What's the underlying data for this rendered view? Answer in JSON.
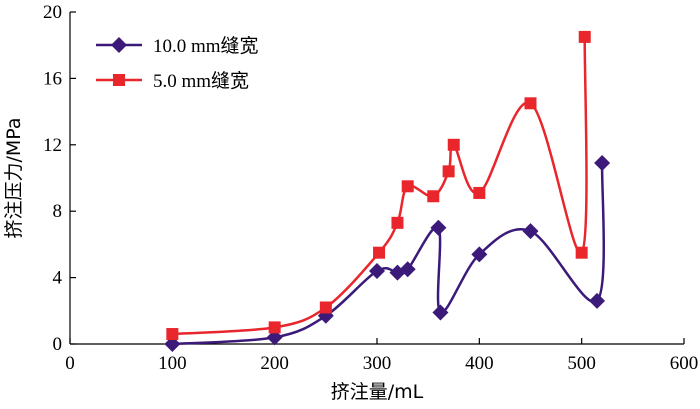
{
  "chart_data": {
    "type": "line",
    "xlabel": "挤注量/mL",
    "ylabel": "挤注压力/MPa",
    "xlim": [
      0,
      600
    ],
    "ylim": [
      0,
      20
    ],
    "x_ticks": [
      "0",
      "100",
      "200",
      "300",
      "400",
      "500",
      "600"
    ],
    "y_ticks": [
      "0",
      "4",
      "8",
      "12",
      "16",
      "20"
    ],
    "grid": false,
    "legend_position": "top-left",
    "series": [
      {
        "name": "10.0 mm缝宽",
        "color": "#3b1a7a",
        "marker": "diamond",
        "x": [
          100,
          200,
          250,
          300,
          320,
          330,
          360,
          362,
          400,
          450,
          515,
          520
        ],
        "y": [
          0.0,
          0.4,
          1.7,
          4.4,
          4.3,
          4.5,
          7.0,
          1.9,
          5.4,
          6.8,
          2.6,
          10.9
        ]
      },
      {
        "name": "5.0 mm缝宽",
        "color": "#e8262b",
        "marker": "square",
        "x": [
          100,
          200,
          250,
          302,
          320,
          330,
          355,
          370,
          375,
          400,
          450,
          500,
          503
        ],
        "y": [
          0.6,
          1.0,
          2.2,
          5.5,
          7.3,
          9.5,
          8.9,
          10.4,
          12.0,
          9.1,
          14.5,
          5.5,
          18.5
        ]
      }
    ]
  }
}
